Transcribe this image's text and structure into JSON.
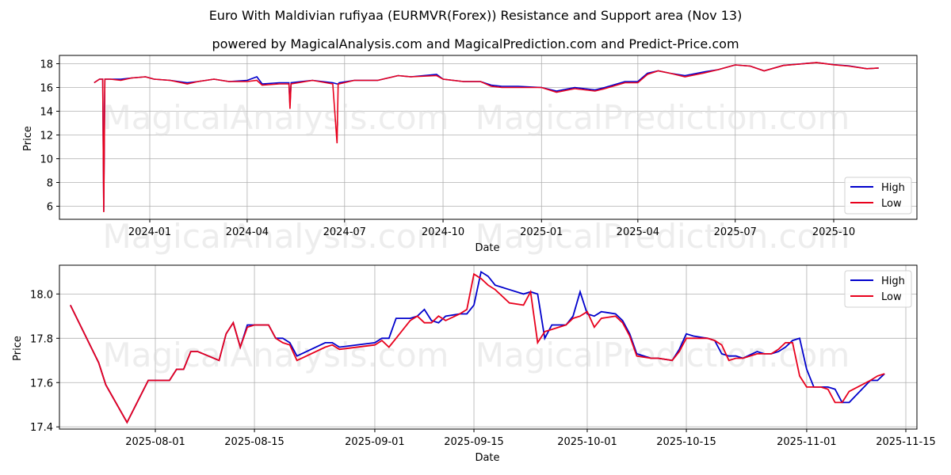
{
  "header": {
    "title": "Euro With Maldivian rufiyaa (EURMVR(Forex)) Resistance and Support area (Nov 13)",
    "subtitle": "powered by MagicalAnalysis.com and MagicalPrediction.com and Predict-Price.com"
  },
  "watermarks": [
    "MagicalAnalysis.com",
    "MagicalPrediction.com"
  ],
  "colors": {
    "high": "#0000cc",
    "low": "#e8001c",
    "grid": "#b0b0b0"
  },
  "legend": {
    "high_label": "High",
    "low_label": "Low"
  },
  "chart_data": [
    {
      "type": "line",
      "title": "Full history",
      "xlabel": "Date",
      "ylabel": "Price",
      "ylim": [
        4.9,
        18.7
      ],
      "yticks": [
        6,
        8,
        10,
        12,
        14,
        16,
        18
      ],
      "xticks": [
        "2024-01",
        "2024-04",
        "2024-07",
        "2024-10",
        "2025-01",
        "2025-04",
        "2025-07",
        "2025-10"
      ],
      "grid": true,
      "legend_position": "lower right",
      "x": [
        "2023-11-10",
        "2023-11-15",
        "2023-11-18",
        "2023-11-19",
        "2023-11-20",
        "2023-11-25",
        "2023-12-05",
        "2023-12-15",
        "2023-12-28",
        "2024-01-05",
        "2024-01-20",
        "2024-02-05",
        "2024-02-15",
        "2024-03-01",
        "2024-03-15",
        "2024-04-01",
        "2024-04-10",
        "2024-04-15",
        "2024-05-01",
        "2024-05-10",
        "2024-05-11",
        "2024-05-12",
        "2024-06-01",
        "2024-06-20",
        "2024-06-24",
        "2024-06-25",
        "2024-06-26",
        "2024-07-10",
        "2024-08-01",
        "2024-08-20",
        "2024-09-01",
        "2024-09-25",
        "2024-10-01",
        "2024-10-20",
        "2024-11-05",
        "2024-11-15",
        "2024-11-25",
        "2024-12-10",
        "2025-01-01",
        "2025-01-15",
        "2025-02-01",
        "2025-02-20",
        "2025-03-01",
        "2025-03-20",
        "2025-04-01",
        "2025-04-10",
        "2025-04-20",
        "2025-05-01",
        "2025-05-15",
        "2025-06-01",
        "2025-06-15",
        "2025-07-01",
        "2025-07-15",
        "2025-07-28",
        "2025-08-15",
        "2025-09-15",
        "2025-10-01",
        "2025-10-15",
        "2025-11-01",
        "2025-11-12"
      ],
      "series": [
        {
          "name": "High",
          "values": [
            16.4,
            16.7,
            16.7,
            5.6,
            16.7,
            16.7,
            16.7,
            16.8,
            16.9,
            16.7,
            16.6,
            16.4,
            16.5,
            16.7,
            16.5,
            16.6,
            16.9,
            16.3,
            16.4,
            16.4,
            14.5,
            16.4,
            16.6,
            16.4,
            16.3,
            16.3,
            16.4,
            16.6,
            16.6,
            17.0,
            16.9,
            17.1,
            16.7,
            16.5,
            16.5,
            16.2,
            16.1,
            16.1,
            16.0,
            15.7,
            16.0,
            15.8,
            16.0,
            16.5,
            16.5,
            17.2,
            17.4,
            17.2,
            17.0,
            17.3,
            17.5,
            17.9,
            17.8,
            17.4,
            17.86,
            18.1,
            17.92,
            17.82,
            17.58,
            17.64
          ]
        },
        {
          "name": "Low",
          "values": [
            16.4,
            16.7,
            16.7,
            5.5,
            16.7,
            16.7,
            16.6,
            16.8,
            16.9,
            16.7,
            16.6,
            16.3,
            16.5,
            16.7,
            16.5,
            16.5,
            16.6,
            16.2,
            16.3,
            16.3,
            14.2,
            16.3,
            16.6,
            16.3,
            11.3,
            16.3,
            16.3,
            16.6,
            16.6,
            17.0,
            16.9,
            17.0,
            16.7,
            16.5,
            16.5,
            16.1,
            16.0,
            16.0,
            16.0,
            15.6,
            15.9,
            15.7,
            15.9,
            16.4,
            16.4,
            17.1,
            17.4,
            17.2,
            16.9,
            17.2,
            17.5,
            17.9,
            17.8,
            17.4,
            17.85,
            18.09,
            17.91,
            17.8,
            17.58,
            17.64
          ]
        }
      ]
    },
    {
      "type": "line",
      "title": "Recent detail",
      "xlabel": "Date",
      "ylabel": "Price",
      "ylim": [
        17.39,
        18.13
      ],
      "yticks": [
        "17.4",
        "17.6",
        "17.8",
        "18.0"
      ],
      "xticks": [
        "2025-08-01",
        "2025-08-15",
        "2025-09-01",
        "2025-09-15",
        "2025-10-01",
        "2025-10-15",
        "2025-11-01",
        "2025-11-15"
      ],
      "grid": true,
      "legend_position": "upper right",
      "x": [
        "2025-07-20",
        "2025-07-24",
        "2025-07-25",
        "2025-07-28",
        "2025-07-31",
        "2025-08-01",
        "2025-08-03",
        "2025-08-04",
        "2025-08-05",
        "2025-08-06",
        "2025-08-07",
        "2025-08-10",
        "2025-08-11",
        "2025-08-12",
        "2025-08-13",
        "2025-08-14",
        "2025-08-15",
        "2025-08-17",
        "2025-08-18",
        "2025-08-19",
        "2025-08-20",
        "2025-08-21",
        "2025-08-25",
        "2025-08-26",
        "2025-08-27",
        "2025-09-01",
        "2025-09-02",
        "2025-09-03",
        "2025-09-04",
        "2025-09-06",
        "2025-09-07",
        "2025-09-08",
        "2025-09-09",
        "2025-09-10",
        "2025-09-11",
        "2025-09-13",
        "2025-09-14",
        "2025-09-15",
        "2025-09-16",
        "2025-09-17",
        "2025-09-18",
        "2025-09-20",
        "2025-09-22",
        "2025-09-23",
        "2025-09-24",
        "2025-09-25",
        "2025-09-26",
        "2025-09-28",
        "2025-09-29",
        "2025-09-30",
        "2025-10-01",
        "2025-10-02",
        "2025-10-03",
        "2025-10-05",
        "2025-10-06",
        "2025-10-07",
        "2025-10-08",
        "2025-10-10",
        "2025-10-11",
        "2025-10-13",
        "2025-10-14",
        "2025-10-15",
        "2025-10-16",
        "2025-10-18",
        "2025-10-19",
        "2025-10-20",
        "2025-10-21",
        "2025-10-22",
        "2025-10-23",
        "2025-10-25",
        "2025-10-26",
        "2025-10-27",
        "2025-10-28",
        "2025-10-29",
        "2025-10-30",
        "2025-10-31",
        "2025-11-01",
        "2025-11-02",
        "2025-11-03",
        "2025-11-04",
        "2025-11-05",
        "2025-11-06",
        "2025-11-07",
        "2025-11-10",
        "2025-11-11",
        "2025-11-12"
      ],
      "series": [
        {
          "name": "High",
          "values": [
            17.95,
            17.69,
            17.59,
            17.42,
            17.61,
            17.61,
            17.61,
            17.66,
            17.66,
            17.74,
            17.74,
            17.7,
            17.82,
            17.87,
            17.76,
            17.86,
            17.86,
            17.86,
            17.8,
            17.8,
            17.78,
            17.72,
            17.78,
            17.78,
            17.76,
            17.78,
            17.8,
            17.8,
            17.89,
            17.89,
            17.9,
            17.93,
            17.88,
            17.87,
            17.9,
            17.91,
            17.91,
            17.95,
            18.1,
            18.08,
            18.04,
            18.02,
            18.0,
            18.01,
            18.0,
            17.8,
            17.86,
            17.86,
            17.9,
            18.01,
            17.91,
            17.9,
            17.92,
            17.91,
            17.88,
            17.82,
            17.73,
            17.71,
            17.71,
            17.7,
            17.75,
            17.82,
            17.81,
            17.8,
            17.79,
            17.73,
            17.72,
            17.72,
            17.71,
            17.74,
            17.73,
            17.73,
            17.74,
            17.76,
            17.79,
            17.8,
            17.66,
            17.58,
            17.58,
            17.58,
            17.57,
            17.51,
            17.51,
            17.61,
            17.61,
            17.64
          ]
        },
        {
          "name": "Low",
          "values": [
            17.95,
            17.69,
            17.59,
            17.42,
            17.61,
            17.61,
            17.61,
            17.66,
            17.66,
            17.74,
            17.74,
            17.7,
            17.82,
            17.87,
            17.76,
            17.85,
            17.86,
            17.86,
            17.8,
            17.78,
            17.77,
            17.7,
            17.76,
            17.77,
            17.75,
            17.77,
            17.79,
            17.76,
            17.8,
            17.88,
            17.9,
            17.87,
            17.87,
            17.9,
            17.88,
            17.91,
            17.93,
            18.09,
            18.07,
            18.04,
            18.02,
            17.96,
            17.95,
            18.01,
            17.78,
            17.83,
            17.84,
            17.86,
            17.89,
            17.9,
            17.92,
            17.85,
            17.89,
            17.9,
            17.87,
            17.81,
            17.72,
            17.71,
            17.71,
            17.7,
            17.74,
            17.8,
            17.8,
            17.8,
            17.79,
            17.77,
            17.7,
            17.71,
            17.71,
            17.73,
            17.73,
            17.73,
            17.75,
            17.78,
            17.78,
            17.63,
            17.58,
            17.58,
            17.58,
            17.57,
            17.51,
            17.51,
            17.56,
            17.61,
            17.63,
            17.64
          ]
        }
      ]
    }
  ]
}
